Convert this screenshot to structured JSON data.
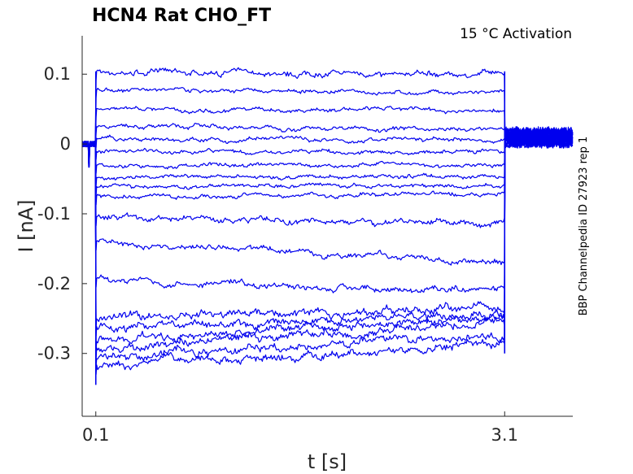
{
  "chart_data": {
    "type": "line",
    "title": "HCN4  Rat  CHO_FT",
    "annotation": "15 °C  Activation",
    "side_label": "BBP Channelpedia ID 27923 rep 1",
    "xlabel": "t [s]",
    "ylabel": "I [nA]",
    "xlim": [
      0.0,
      3.6
    ],
    "ylim": [
      -0.39,
      0.155
    ],
    "x_ticks": [
      0.1,
      3.1
    ],
    "x_tick_labels": [
      "0.1",
      "3.1"
    ],
    "y_ticks": [
      0.1,
      0,
      -0.1,
      -0.2,
      -0.3
    ],
    "y_tick_labels": [
      "0.1",
      "0",
      "-0.1",
      "-0.2",
      "-0.3"
    ],
    "grid": false,
    "color": "#0000ee",
    "stimulus_window": [
      0.1,
      3.1
    ],
    "holding_current": 0.0,
    "series": [
      {
        "start": 0.103,
        "end": 0.1
      },
      {
        "start": 0.078,
        "end": 0.072
      },
      {
        "start": 0.05,
        "end": 0.048
      },
      {
        "start": 0.027,
        "end": 0.02
      },
      {
        "start": 0.007,
        "end": 0.005
      },
      {
        "start": -0.01,
        "end": -0.012
      },
      {
        "start": -0.03,
        "end": -0.03
      },
      {
        "start": -0.048,
        "end": -0.046
      },
      {
        "start": -0.062,
        "end": -0.059
      },
      {
        "start": -0.075,
        "end": -0.072
      },
      {
        "start": -0.105,
        "end": -0.115
      },
      {
        "start": -0.14,
        "end": -0.17
      },
      {
        "start": -0.193,
        "end": -0.21
      },
      {
        "start": -0.25,
        "end": -0.233
      },
      {
        "start": -0.263,
        "end": -0.243
      },
      {
        "start": -0.282,
        "end": -0.248
      },
      {
        "start": -0.295,
        "end": -0.255
      },
      {
        "start": -0.305,
        "end": -0.275
      },
      {
        "start": -0.318,
        "end": -0.285
      }
    ]
  }
}
